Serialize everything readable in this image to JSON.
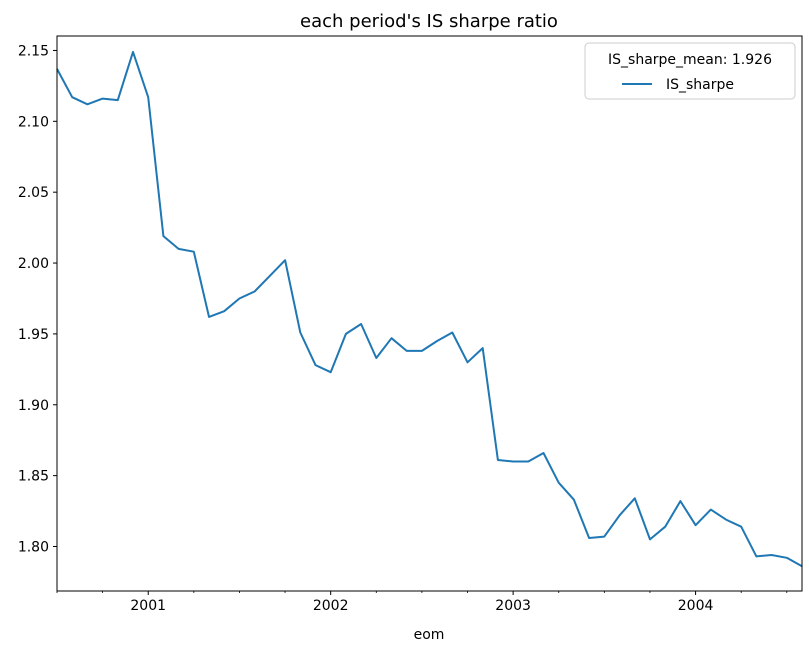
{
  "chart_data": {
    "type": "line",
    "title": "each period's IS sharpe ratio",
    "xlabel": "eom",
    "ylabel": "",
    "x_tick_labels": [
      "2001",
      "2002",
      "2003",
      "2004"
    ],
    "y_tick_labels": [
      "1.80",
      "1.85",
      "1.90",
      "1.95",
      "2.00",
      "2.05",
      "2.10",
      "2.15"
    ],
    "xlim": [
      "2000-07",
      "2004-08"
    ],
    "ylim": [
      1.7686,
      2.1602
    ],
    "grid": false,
    "legend": {
      "title": "IS_sharpe_mean: 1.926",
      "placement": "top-right"
    },
    "series": [
      {
        "name": "IS_sharpe",
        "color": "#1f77b4",
        "x": [
          "2000-07",
          "2000-08",
          "2000-09",
          "2000-10",
          "2000-11",
          "2000-12",
          "2001-01",
          "2001-02",
          "2001-03",
          "2001-04",
          "2001-05",
          "2001-06",
          "2001-07",
          "2001-08",
          "2001-09",
          "2001-10",
          "2001-11",
          "2001-12",
          "2002-01",
          "2002-02",
          "2002-03",
          "2002-04",
          "2002-05",
          "2002-06",
          "2002-07",
          "2002-08",
          "2002-09",
          "2002-10",
          "2002-11",
          "2002-12",
          "2003-01",
          "2003-02",
          "2003-03",
          "2003-04",
          "2003-05",
          "2003-06",
          "2003-07",
          "2003-08",
          "2003-09",
          "2003-10",
          "2003-11",
          "2003-12",
          "2004-01",
          "2004-02",
          "2004-03",
          "2004-04",
          "2004-05",
          "2004-06",
          "2004-07",
          "2004-08"
        ],
        "values": [
          2.137,
          2.117,
          2.112,
          2.116,
          2.115,
          2.149,
          2.117,
          2.019,
          2.01,
          2.008,
          1.962,
          1.966,
          1.975,
          1.98,
          1.991,
          2.002,
          1.951,
          1.928,
          1.923,
          1.95,
          1.957,
          1.933,
          1.947,
          1.938,
          1.938,
          1.945,
          1.951,
          1.93,
          1.94,
          1.861,
          1.86,
          1.86,
          1.866,
          1.845,
          1.833,
          1.806,
          1.807,
          1.822,
          1.834,
          1.805,
          1.814,
          1.832,
          1.815,
          1.826,
          1.819,
          1.814,
          1.793,
          1.794,
          1.792,
          1.786
        ]
      }
    ]
  }
}
